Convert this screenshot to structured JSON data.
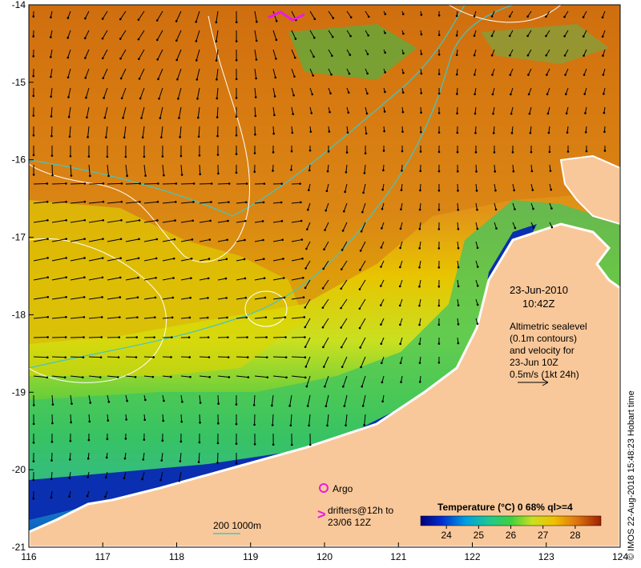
{
  "map": {
    "lon_ticks": [
      116,
      117,
      118,
      119,
      120,
      121,
      122,
      123,
      124
    ],
    "lat_ticks": [
      -14,
      -15,
      -16,
      -17,
      -18,
      -19,
      -20,
      -21
    ],
    "lon_range": [
      116,
      124
    ],
    "lat_range": [
      -21,
      -14
    ]
  },
  "info": {
    "date": "23-Jun-2010",
    "time": "10:42Z",
    "desc_line1": "Altimetric sealevel",
    "desc_line2": "(0.1m contours)",
    "desc_line3": "and velocity for",
    "desc_line4": "23-Jun 10Z",
    "scale_text": "0.5m/s (1kt 24h)"
  },
  "legend": {
    "argo_label": "Argo",
    "drifters_line1": "drifters@12h to",
    "drifters_line2": "23/06 12Z",
    "isobath_label": "200  1000m",
    "colorbar_title": "Temperature (°C) 0 68% ql>=4",
    "colorbar_ticks": [
      "24",
      "25",
      "26",
      "27",
      "28"
    ],
    "colorbar_min": 23.2,
    "colorbar_max": 28.8,
    "credit": "© IMOS 22-Aug-2018 15:48:23 Hobart time"
  },
  "colors": {
    "land": "#f9c89a",
    "warm": "#d9780e",
    "mid": "#e8c200",
    "cool": "#2fbf6a",
    "cold": "#001c9c",
    "contour": "#ffffff",
    "isobath": "#3fc7c7",
    "argo": "#e81ce0"
  }
}
